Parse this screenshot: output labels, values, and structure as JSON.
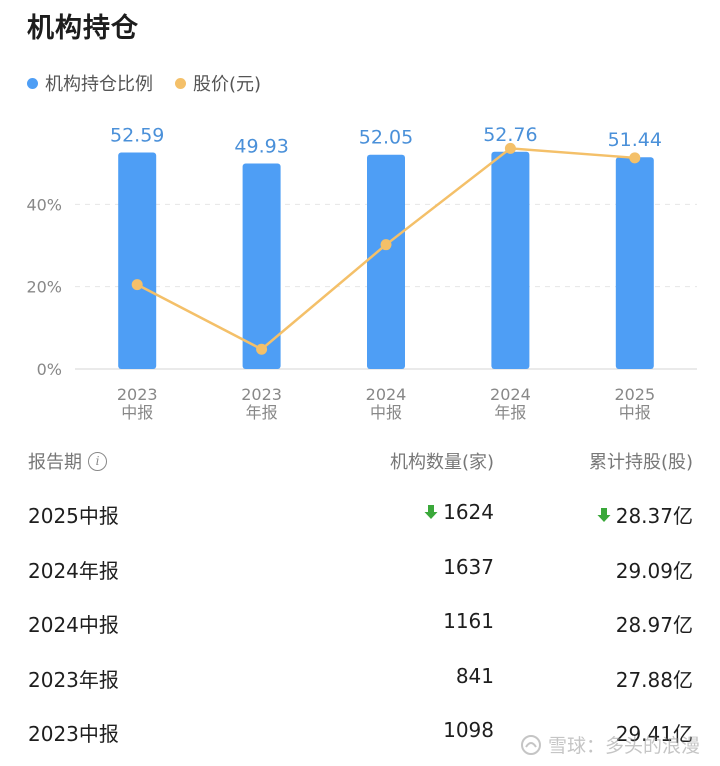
{
  "title": "机构持仓",
  "legend": [
    {
      "label": "机构持仓比例",
      "color": "#4e9ef5"
    },
    {
      "label": "股价(元)",
      "color": "#f4c069"
    }
  ],
  "chart_data": {
    "type": "bar",
    "categories": [
      [
        "2023",
        "中报"
      ],
      [
        "2023",
        "年报"
      ],
      [
        "2024",
        "中报"
      ],
      [
        "2024",
        "年报"
      ],
      [
        "2025",
        "中报"
      ]
    ],
    "series": [
      {
        "name": "机构持仓比例",
        "type": "bar",
        "values": [
          52.59,
          49.93,
          52.05,
          52.76,
          51.44
        ],
        "labels": [
          "52.59",
          "49.93",
          "52.05",
          "52.76",
          "51.44"
        ],
        "color": "#4e9ef5"
      },
      {
        "name": "股价(元)",
        "type": "line",
        "values": [
          20.5,
          4.8,
          30.2,
          53.6,
          51.3
        ],
        "color": "#f4c069"
      }
    ],
    "yticks": [
      "0%",
      "20%",
      "40%"
    ],
    "ytick_values": [
      0,
      20,
      40
    ],
    "ylim": [
      0,
      60
    ],
    "grid": true
  },
  "table": {
    "headers": {
      "period": "报告期",
      "count": "机构数量(家)",
      "shares": "累计持股(股)"
    },
    "info_icon": "info-icon",
    "rows": [
      {
        "period": "2025中报",
        "count": "1624",
        "shares": "28.37亿",
        "count_down": true,
        "shares_down": true
      },
      {
        "period": "2024年报",
        "count": "1637",
        "shares": "29.09亿",
        "count_down": false,
        "shares_down": false
      },
      {
        "period": "2024中报",
        "count": "1161",
        "shares": "28.97亿",
        "count_down": false,
        "shares_down": false
      },
      {
        "period": "2023年报",
        "count": "841",
        "shares": "27.88亿",
        "count_down": false,
        "shares_down": false
      },
      {
        "period": "2023中报",
        "count": "1098",
        "shares": "29.41亿",
        "count_down": false,
        "shares_down": false
      }
    ],
    "down_color": "#3aa83a"
  },
  "watermark": {
    "text": "雪球：多头的浪漫",
    "icon": "snowball-logo-icon"
  }
}
